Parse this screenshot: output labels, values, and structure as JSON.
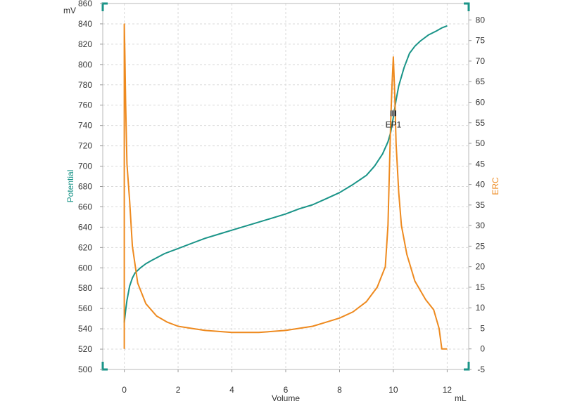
{
  "chart_data": {
    "type": "line",
    "xlabel": "Volume",
    "x_unit": "mL",
    "y_left_label": "Potential",
    "y_left_unit": "mV",
    "y_right_label": "ERC",
    "xlim": [
      -0.8,
      12.8
    ],
    "y_left_lim": [
      500,
      860
    ],
    "y_right_lim": [
      -5,
      84
    ],
    "x_ticks": [
      "0",
      "2",
      "4",
      "6",
      "8",
      "10",
      "12"
    ],
    "y_left_ticks": [
      "500",
      "520",
      "540",
      "560",
      "580",
      "600",
      "620",
      "640",
      "660",
      "680",
      "700",
      "720",
      "740",
      "760",
      "780",
      "800",
      "820",
      "840",
      "860"
    ],
    "y_right_ticks": [
      "-5",
      "0",
      "5",
      "10",
      "15",
      "20",
      "25",
      "30",
      "35",
      "40",
      "45",
      "50",
      "55",
      "60",
      "65",
      "70",
      "75",
      "80"
    ],
    "grid": true,
    "series": [
      {
        "name": "Potential",
        "axis": "left",
        "color": "#1a9488",
        "x": [
          0,
          0.05,
          0.1,
          0.2,
          0.3,
          0.4,
          0.6,
          0.8,
          1.0,
          1.5,
          2.0,
          2.5,
          3.0,
          3.5,
          4.0,
          4.5,
          5.0,
          5.5,
          6.0,
          6.5,
          7.0,
          7.5,
          8.0,
          8.5,
          9.0,
          9.3,
          9.6,
          9.8,
          9.9,
          10.0,
          10.1,
          10.2,
          10.4,
          10.6,
          10.8,
          11.0,
          11.3,
          11.6,
          11.8,
          12.0
        ],
        "values": [
          546,
          558,
          568,
          582,
          590,
          595,
          600,
          604,
          607,
          614,
          619,
          624,
          629,
          633,
          637,
          641,
          645,
          649,
          653,
          658,
          662,
          668,
          674,
          682,
          691,
          700,
          712,
          724,
          733,
          748,
          765,
          779,
          797,
          811,
          818,
          823,
          829,
          833,
          836,
          838
        ]
      },
      {
        "name": "ERC",
        "axis": "right",
        "color": "#ee8a1f",
        "x": [
          0,
          0.0,
          0.02,
          0.05,
          0.1,
          0.2,
          0.3,
          0.5,
          0.8,
          1.2,
          1.6,
          2.0,
          2.5,
          3.0,
          4.0,
          5.0,
          6.0,
          7.0,
          7.5,
          8.0,
          8.5,
          9.0,
          9.4,
          9.7,
          9.8,
          9.9,
          9.95,
          10.0,
          10.05,
          10.1,
          10.2,
          10.3,
          10.5,
          10.8,
          11.2,
          11.5,
          11.7,
          11.8,
          12.0
        ],
        "values": [
          0,
          79,
          72,
          60,
          45,
          36,
          25,
          16,
          11,
          8,
          6.5,
          5.5,
          5,
          4.5,
          4,
          4,
          4.5,
          5.5,
          6.5,
          7.5,
          9,
          11.5,
          15,
          20,
          30,
          55,
          64,
          71,
          62,
          50,
          38,
          30,
          23,
          16.5,
          12,
          9.5,
          5,
          0,
          0
        ]
      }
    ],
    "markers": [
      {
        "label": "EP1",
        "x": 10.0,
        "y": 752
      }
    ]
  }
}
